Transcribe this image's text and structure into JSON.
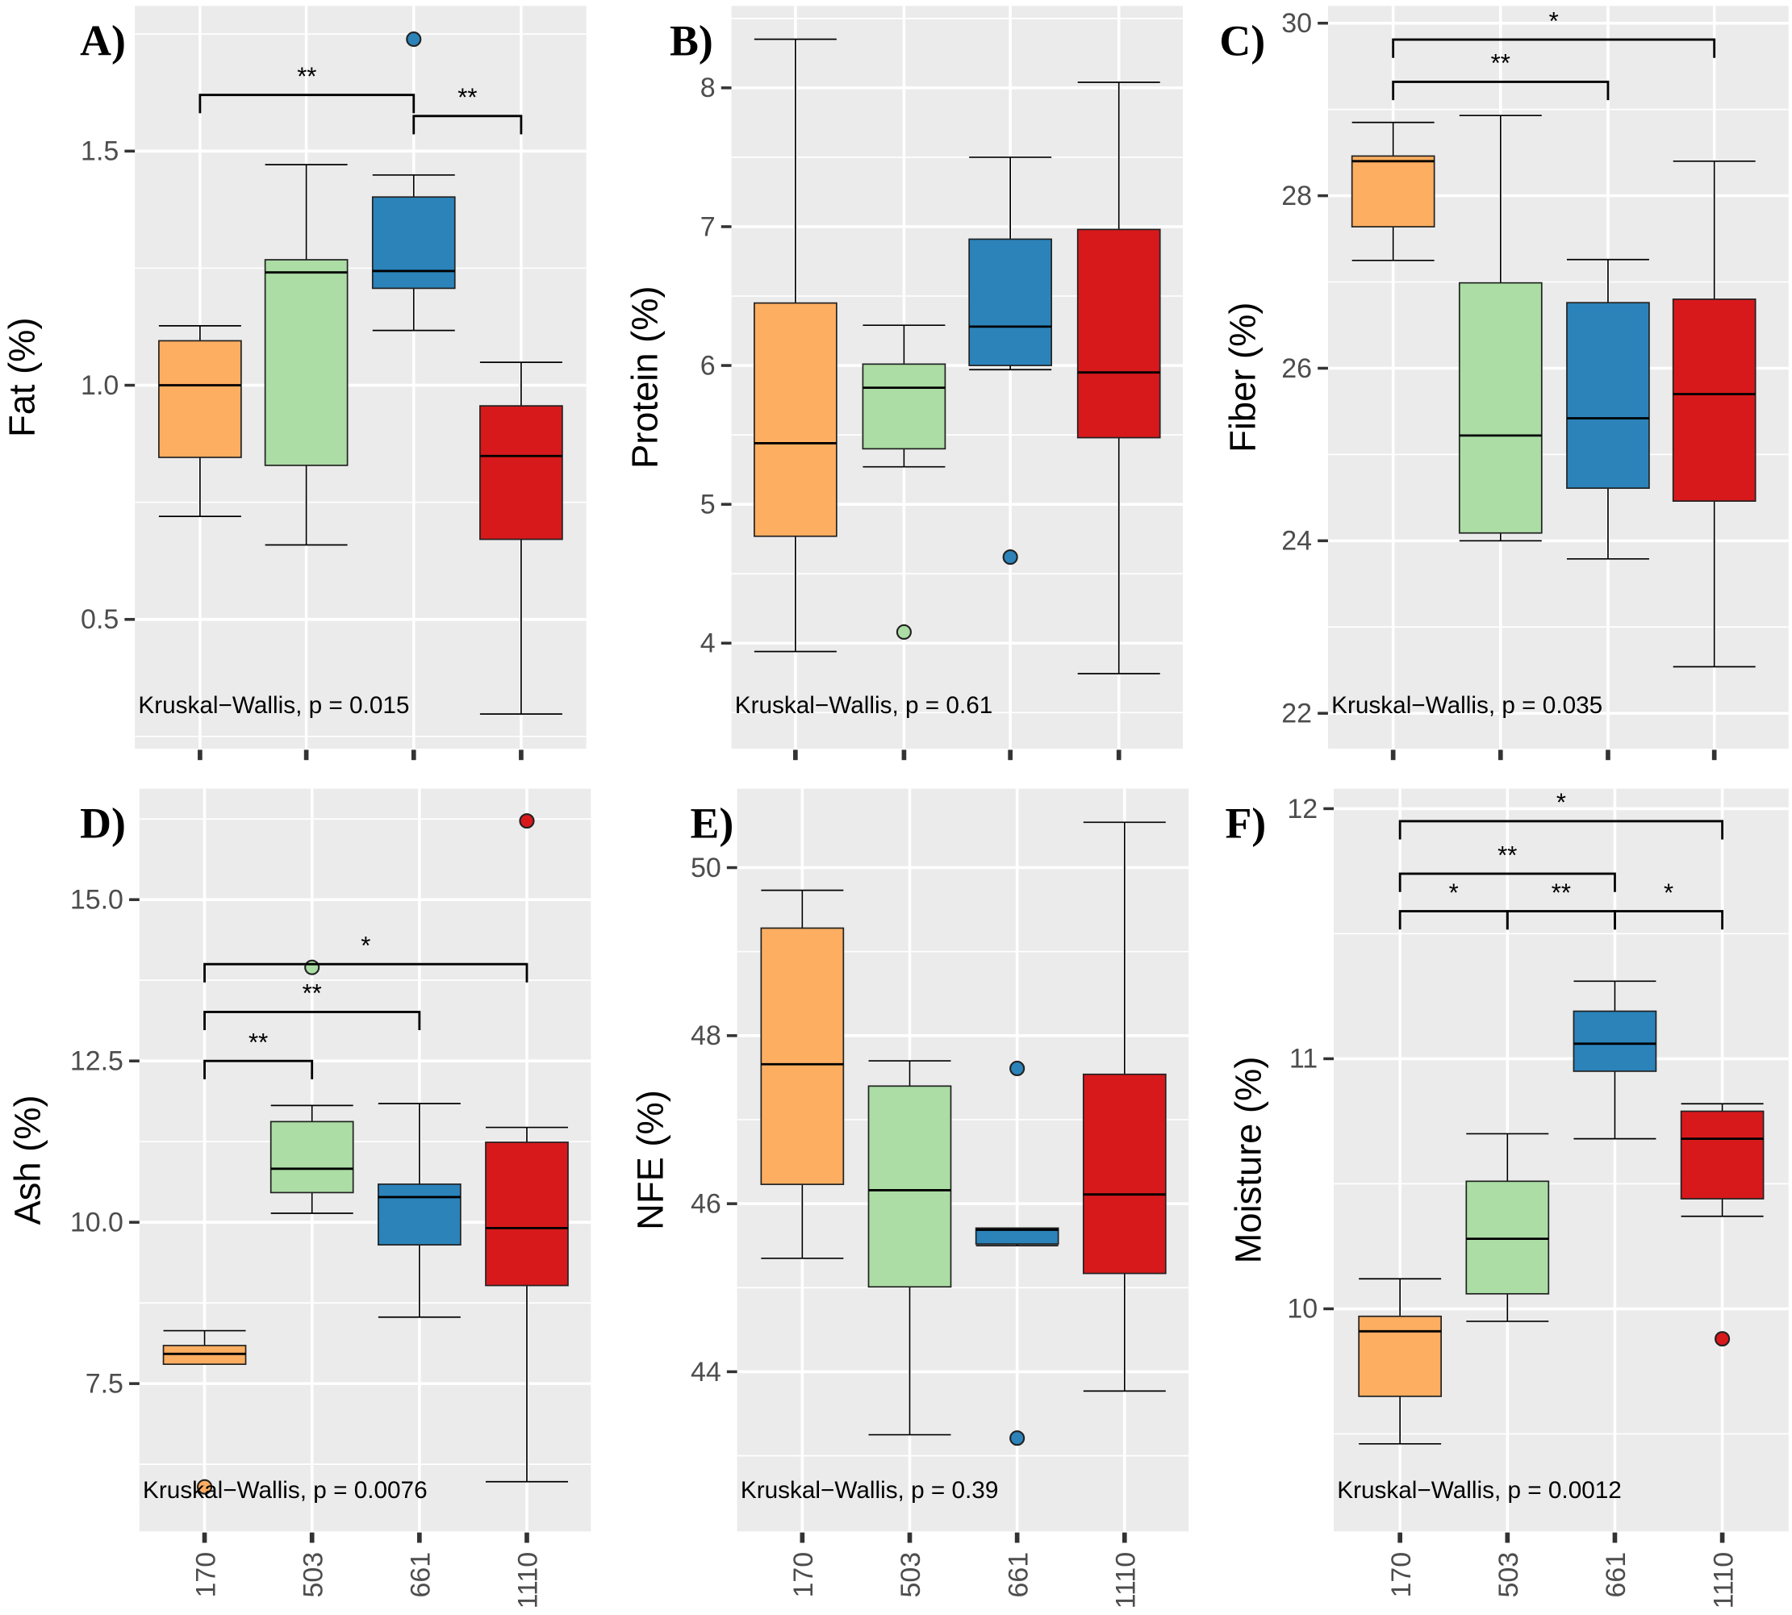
{
  "colors": {
    "170": "#FDAE61",
    "503": "#ABDDA4",
    "661": "#2B83BA",
    "1110": "#D7191C",
    "panel_bg": "#EBEBEB",
    "grid": "#FFFFFF"
  },
  "chart_data": [
    {
      "type": "box",
      "panel_label": "A)",
      "ylabel": "Fat (%)",
      "categories": [
        "170",
        "503",
        "661",
        "1110"
      ],
      "ylim": [
        0.224,
        1.81
      ],
      "yticks": [
        0.5,
        1.0,
        1.5
      ],
      "ytick_labels": [
        "0.5",
        "1.0",
        "1.5"
      ],
      "grid": true,
      "show_x_labels": false,
      "boxes": [
        {
          "category": "170",
          "min": 0.72,
          "q1": 0.846,
          "median": 1.0,
          "q3": 1.095,
          "max": 1.127,
          "outliers": []
        },
        {
          "category": "503",
          "min": 0.659,
          "q1": 0.829,
          "median": 1.241,
          "q3": 1.268,
          "max": 1.471,
          "outliers": []
        },
        {
          "category": "661",
          "min": 1.117,
          "q1": 1.207,
          "median": 1.244,
          "q3": 1.402,
          "max": 1.449,
          "outliers": [
            1.739
          ]
        },
        {
          "category": "1110",
          "min": 0.298,
          "q1": 0.671,
          "median": 0.849,
          "q3": 0.956,
          "max": 1.049,
          "outliers": []
        }
      ],
      "comparisons": [
        {
          "from": "170",
          "to": "661",
          "y": 1.62,
          "label": "**"
        },
        {
          "from": "661",
          "to": "1110",
          "y": 1.575,
          "label": "**"
        }
      ],
      "annotation": "Kruskal−Wallis, p = 0.015"
    },
    {
      "type": "box",
      "panel_label": "B)",
      "ylabel": "Protein (%)",
      "categories": [
        "170",
        "503",
        "661",
        "1110"
      ],
      "ylim": [
        3.24,
        8.59
      ],
      "yticks": [
        4,
        5,
        6,
        7,
        8
      ],
      "ytick_labels": [
        "4",
        "5",
        "6",
        "7",
        "8"
      ],
      "grid": true,
      "show_x_labels": false,
      "boxes": [
        {
          "category": "170",
          "min": 3.94,
          "q1": 4.77,
          "median": 5.44,
          "q3": 6.45,
          "max": 8.35,
          "outliers": []
        },
        {
          "category": "503",
          "min": 5.27,
          "q1": 5.4,
          "median": 5.84,
          "q3": 6.01,
          "max": 6.29,
          "outliers": [
            4.08
          ]
        },
        {
          "category": "661",
          "min": 5.97,
          "q1": 6.0,
          "median": 6.28,
          "q3": 6.91,
          "max": 7.5,
          "outliers": [
            4.62
          ]
        },
        {
          "category": "1110",
          "min": 3.78,
          "q1": 5.48,
          "median": 5.95,
          "q3": 6.98,
          "max": 8.04,
          "outliers": []
        }
      ],
      "comparisons": [],
      "annotation": "Kruskal−Wallis, p = 0.61"
    },
    {
      "type": "box",
      "panel_label": "C)",
      "ylabel": "Fiber (%)",
      "categories": [
        "170",
        "503",
        "661",
        "1110"
      ],
      "ylim": [
        21.59,
        30.2
      ],
      "yticks": [
        22,
        24,
        26,
        28,
        30
      ],
      "ytick_labels": [
        "22",
        "24",
        "26",
        "28",
        "30"
      ],
      "grid": true,
      "show_x_labels": false,
      "boxes": [
        {
          "category": "170",
          "min": 27.25,
          "q1": 27.64,
          "median": 28.4,
          "q3": 28.46,
          "max": 28.85,
          "outliers": []
        },
        {
          "category": "503",
          "min": 24.0,
          "q1": 24.09,
          "median": 25.22,
          "q3": 26.99,
          "max": 28.93,
          "outliers": []
        },
        {
          "category": "661",
          "min": 23.79,
          "q1": 24.61,
          "median": 25.42,
          "q3": 26.76,
          "max": 27.26,
          "outliers": []
        },
        {
          "category": "1110",
          "min": 22.54,
          "q1": 24.46,
          "median": 25.7,
          "q3": 26.8,
          "max": 28.4,
          "outliers": []
        }
      ],
      "comparisons": [
        {
          "from": "170",
          "to": "661",
          "y": 29.32,
          "label": "**"
        },
        {
          "from": "170",
          "to": "1110",
          "y": 29.81,
          "label": "*"
        }
      ],
      "annotation": "Kruskal−Wallis, p = 0.035"
    },
    {
      "type": "box",
      "panel_label": "D)",
      "ylabel": "Ash (%)",
      "categories": [
        "170",
        "503",
        "661",
        "1110"
      ],
      "ylim": [
        5.21,
        16.72
      ],
      "yticks": [
        7.5,
        10.0,
        12.5,
        15.0
      ],
      "ytick_labels": [
        "7.5",
        "10.0",
        "12.5",
        "15.0"
      ],
      "grid": true,
      "show_x_labels": true,
      "boxes": [
        {
          "category": "170",
          "min": 7.8,
          "q1": 7.8,
          "median": 7.96,
          "q3": 8.09,
          "max": 8.32,
          "outliers": [
            5.9
          ]
        },
        {
          "category": "503",
          "min": 10.14,
          "q1": 10.46,
          "median": 10.83,
          "q3": 11.56,
          "max": 11.81,
          "outliers": [
            13.95
          ]
        },
        {
          "category": "661",
          "min": 8.53,
          "q1": 9.65,
          "median": 10.39,
          "q3": 10.59,
          "max": 11.84,
          "outliers": []
        },
        {
          "category": "1110",
          "min": 5.98,
          "q1": 9.02,
          "median": 9.91,
          "q3": 11.24,
          "max": 11.47,
          "outliers": [
            16.22
          ]
        }
      ],
      "comparisons": [
        {
          "from": "170",
          "to": "503",
          "y": 12.5,
          "label": "**"
        },
        {
          "from": "170",
          "to": "661",
          "y": 13.26,
          "label": "**"
        },
        {
          "from": "170",
          "to": "1110",
          "y": 14.0,
          "label": "*"
        }
      ],
      "annotation": "Kruskal−Wallis, p = 0.0076"
    },
    {
      "type": "box",
      "panel_label": "E)",
      "ylabel": "NFE (%)",
      "categories": [
        "170",
        "503",
        "661",
        "1110"
      ],
      "ylim": [
        42.1,
        50.94
      ],
      "yticks": [
        44,
        46,
        48,
        50
      ],
      "ytick_labels": [
        "44",
        "46",
        "48",
        "50"
      ],
      "grid": true,
      "show_x_labels": true,
      "boxes": [
        {
          "category": "170",
          "min": 45.35,
          "q1": 46.23,
          "median": 47.66,
          "q3": 49.28,
          "max": 49.73,
          "outliers": []
        },
        {
          "category": "503",
          "min": 43.25,
          "q1": 45.01,
          "median": 46.16,
          "q3": 47.4,
          "max": 47.7,
          "outliers": []
        },
        {
          "category": "661",
          "min": 45.5,
          "q1": 45.52,
          "median": 45.69,
          "q3": 45.71,
          "max": 45.71,
          "outliers": [
            47.61,
            43.21
          ]
        },
        {
          "category": "1110",
          "min": 43.77,
          "q1": 45.17,
          "median": 46.11,
          "q3": 47.54,
          "max": 50.54,
          "outliers": []
        }
      ],
      "comparisons": [],
      "annotation": "Kruskal−Wallis, p = 0.39"
    },
    {
      "type": "box",
      "panel_label": "F)",
      "ylabel": "Moisture (%)",
      "categories": [
        "170",
        "503",
        "661",
        "1110"
      ],
      "ylim": [
        9.11,
        12.08
      ],
      "yticks": [
        10,
        11,
        12
      ],
      "ytick_labels": [
        "10",
        "11",
        "12"
      ],
      "grid": true,
      "show_x_labels": true,
      "boxes": [
        {
          "category": "170",
          "min": 9.46,
          "q1": 9.65,
          "median": 9.91,
          "q3": 9.97,
          "max": 10.12,
          "outliers": []
        },
        {
          "category": "503",
          "min": 9.95,
          "q1": 10.06,
          "median": 10.28,
          "q3": 10.51,
          "max": 10.7,
          "outliers": []
        },
        {
          "category": "661",
          "min": 10.68,
          "q1": 10.95,
          "median": 11.06,
          "q3": 11.19,
          "max": 11.31,
          "outliers": []
        },
        {
          "category": "1110",
          "min": 10.37,
          "q1": 10.44,
          "median": 10.68,
          "q3": 10.79,
          "max": 10.82,
          "outliers": [
            9.88
          ]
        }
      ],
      "comparisons": [
        {
          "from": "170",
          "to": "503",
          "y": 11.59,
          "label": "*"
        },
        {
          "from": "503",
          "to": "661",
          "y": 11.59,
          "label": "**"
        },
        {
          "from": "661",
          "to": "1110",
          "y": 11.59,
          "label": "*"
        },
        {
          "from": "170",
          "to": "661",
          "y": 11.74,
          "label": "**"
        },
        {
          "from": "170",
          "to": "1110",
          "y": 11.95,
          "label": "*"
        }
      ],
      "annotation": "Kruskal−Wallis, p = 0.0012"
    }
  ]
}
